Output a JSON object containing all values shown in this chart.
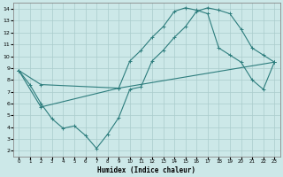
{
  "title": "",
  "xlabel": "Humidex (Indice chaleur)",
  "ylabel": "",
  "bg_color": "#cce8e8",
  "line_color": "#2d7d7d",
  "grid_color": "#aacccc",
  "xlim": [
    -0.5,
    23.5
  ],
  "ylim": [
    1.5,
    14.5
  ],
  "xticks": [
    0,
    1,
    2,
    3,
    4,
    5,
    6,
    7,
    8,
    9,
    10,
    11,
    12,
    13,
    14,
    15,
    16,
    17,
    18,
    19,
    20,
    21,
    22,
    23
  ],
  "yticks": [
    2,
    3,
    4,
    5,
    6,
    7,
    8,
    9,
    10,
    11,
    12,
    13,
    14
  ],
  "line1": {
    "x": [
      0,
      1,
      2,
      3,
      4,
      5,
      6,
      7,
      8,
      9,
      10,
      11,
      12,
      13,
      14,
      15,
      16,
      17,
      18,
      19,
      20,
      21,
      22,
      23
    ],
    "y": [
      8.8,
      7.6,
      6.0,
      4.7,
      3.9,
      4.1,
      3.3,
      2.2,
      3.4,
      4.8,
      7.2,
      7.4,
      9.6,
      10.5,
      11.6,
      12.5,
      13.8,
      14.1,
      13.9,
      13.6,
      12.3,
      10.7,
      10.1,
      9.5
    ]
  },
  "line2": {
    "x": [
      0,
      2,
      9,
      10,
      11,
      12,
      13,
      14,
      15,
      16,
      17,
      18,
      19,
      20,
      21,
      22,
      23
    ],
    "y": [
      8.8,
      7.6,
      7.3,
      9.6,
      10.5,
      11.6,
      12.5,
      13.8,
      14.1,
      13.9,
      13.6,
      10.7,
      10.1,
      9.5,
      8.0,
      7.2,
      9.5
    ]
  },
  "line3": {
    "x": [
      0,
      2,
      9,
      23
    ],
    "y": [
      8.8,
      5.7,
      7.3,
      9.5
    ]
  }
}
